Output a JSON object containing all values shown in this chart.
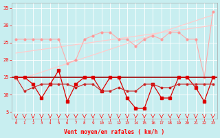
{
  "x": [
    0,
    1,
    2,
    3,
    4,
    5,
    6,
    7,
    8,
    9,
    10,
    11,
    12,
    13,
    14,
    15,
    16,
    17,
    18,
    19,
    20,
    21,
    22,
    23
  ],
  "background_color": "#c8eef0",
  "grid_color": "#b0d8dc",
  "text_color": "#ff0000",
  "xlabel": "Vent moyen/en rafales ( km/h )",
  "ylabel_values": [
    5,
    10,
    15,
    20,
    25,
    30,
    35
  ],
  "ymin": 3,
  "ymax": 36.5,
  "line_rafales": [
    26,
    26,
    26,
    26,
    26,
    26,
    19,
    20,
    26,
    27,
    28,
    28,
    26,
    26,
    24,
    26,
    27,
    26,
    28,
    28,
    26,
    26,
    15,
    34
  ],
  "line_trend1": [
    14,
    33
  ],
  "line_trend2": [
    22,
    30
  ],
  "line_hline": 15,
  "line_vent_moy": [
    15,
    11,
    12,
    13,
    13,
    13,
    13,
    12,
    13,
    13,
    11,
    11,
    12,
    11,
    11,
    13,
    13,
    12,
    12,
    13,
    13,
    13,
    13,
    13
  ],
  "line_rafales2": [
    15,
    15,
    13,
    9,
    13,
    17,
    8,
    13,
    15,
    15,
    11,
    15,
    15,
    9,
    6,
    6,
    13,
    9,
    9,
    15,
    15,
    12,
    8,
    15
  ]
}
